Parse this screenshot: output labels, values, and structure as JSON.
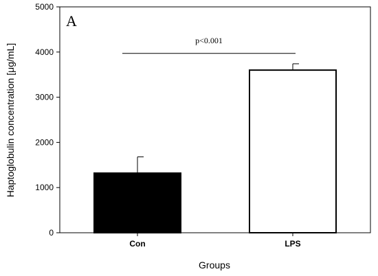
{
  "chart_data": {
    "type": "bar",
    "panel_label": "A",
    "categories": [
      "Con",
      "LPS"
    ],
    "values": [
      1320,
      3600
    ],
    "errors": [
      360,
      140
    ],
    "bar_colors": [
      "#000000",
      "#ffffff"
    ],
    "bar_edge_color": "#000000",
    "xlabel": "Groups",
    "ylabel": "Haptoglobulin concentration [μg/mL]",
    "ylim": [
      0,
      5000
    ],
    "yticks": [
      0,
      1000,
      2000,
      3000,
      4000,
      5000
    ],
    "ytick_labels": [
      "0",
      "1000",
      "2000",
      "3000",
      "4000",
      "5000"
    ],
    "grid": false,
    "annotation": {
      "text": "p<0.001",
      "from_category": "Con",
      "to_category": "LPS",
      "y": 3970
    }
  }
}
